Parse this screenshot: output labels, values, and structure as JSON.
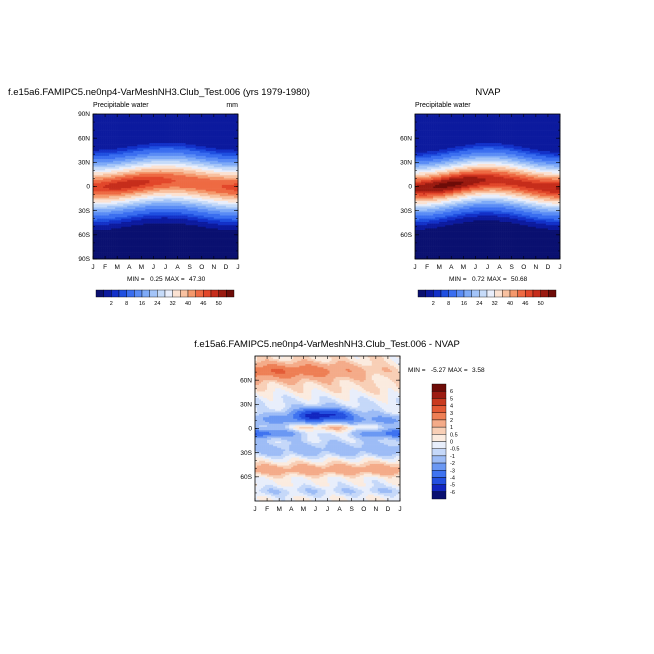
{
  "chart_data": [
    {
      "type": "heatmap",
      "title": "f.e15a6.FAMIPC5.ne0np4-VarMeshNH3.Club_Test.006 (yrs 1979-1980)",
      "left_label": "Precipitable water",
      "right_label": "mm",
      "x_tick_labels": [
        "J",
        "F",
        "M",
        "A",
        "M",
        "J",
        "J",
        "A",
        "S",
        "O",
        "N",
        "D",
        "J"
      ],
      "y_tick_labels": [
        "90N",
        "60N",
        "30N",
        "0",
        "30S",
        "60S",
        "90S"
      ],
      "y_ticks_deg": [
        90,
        60,
        30,
        0,
        -30,
        -60,
        -90
      ],
      "ylim": [
        -90,
        90
      ],
      "min_label": "MIN =",
      "min_value": "0.25",
      "max_label": "MAX =",
      "max_value": "47.30",
      "colorbar_labels": [
        "2",
        "8",
        "16",
        "24",
        "32",
        "40",
        "46",
        "50"
      ],
      "field": {
        "peak": 47.3,
        "peak_lat_at_jan": -2,
        "peak_lat_at_jul": 8,
        "decay_deg": 22,
        "south_floor": 0.25,
        "north_floor": 3
      }
    },
    {
      "type": "heatmap",
      "title": "NVAP",
      "left_label": "Precipitable water",
      "right_label": "",
      "x_tick_labels": [
        "J",
        "F",
        "M",
        "A",
        "M",
        "J",
        "J",
        "A",
        "S",
        "O",
        "N",
        "D",
        "J"
      ],
      "y_tick_labels": [
        "60N",
        "30N",
        "0",
        "30S",
        "60S"
      ],
      "y_ticks_deg": [
        60,
        30,
        0,
        -30,
        -60
      ],
      "ylim": [
        -90,
        90
      ],
      "min_label": "MIN =",
      "min_value": "0.72",
      "max_label": "MAX =",
      "max_value": "50.68",
      "colorbar_labels": [
        "2",
        "8",
        "16",
        "24",
        "32",
        "40",
        "46",
        "50"
      ],
      "field": {
        "peak": 50.68,
        "peak_lat_at_jan": -3,
        "peak_lat_at_jul": 9,
        "decay_deg": 21,
        "south_floor": 0.72,
        "north_floor": 3
      }
    },
    {
      "type": "heatmap",
      "title": "f.e15a6.FAMIPC5.ne0np4-VarMeshNH3.Club_Test.006 - NVAP",
      "left_label": "",
      "right_label": "",
      "x_tick_labels": [
        "J",
        "F",
        "M",
        "A",
        "M",
        "J",
        "J",
        "A",
        "S",
        "O",
        "N",
        "D",
        "J"
      ],
      "y_tick_labels": [
        "60N",
        "30N",
        "0",
        "30S",
        "60S"
      ],
      "y_ticks_deg": [
        60,
        30,
        0,
        -30,
        -60
      ],
      "ylim": [
        -90,
        90
      ],
      "min_label": "MIN =",
      "min_value": "-5.27",
      "max_label": "MAX =",
      "max_value": "3.58",
      "colorbar_labels": [
        "6",
        "5",
        "4",
        "3",
        "2",
        "1",
        "0.5",
        "0",
        "-0.5",
        "-1",
        "-2",
        "-3",
        "-4",
        "-5",
        "-6"
      ]
    }
  ],
  "colors": {
    "abs_palette": [
      "#0a1070",
      "#0c1a9e",
      "#1230c8",
      "#1f4fe0",
      "#3a6ef0",
      "#5a8cf5",
      "#7eaaf7",
      "#a3c4f8",
      "#c6dbf9",
      "#e9eefb",
      "#fbe2d2",
      "#f8c1a0",
      "#f4986c",
      "#ee6a43",
      "#e2472a",
      "#c62d1b",
      "#9a1a10",
      "#6e0c08"
    ],
    "diff_palette": [
      "#0a1070",
      "#1226c0",
      "#2450e0",
      "#3f73f0",
      "#6b98f3",
      "#9dbcf6",
      "#c5d8f9",
      "#e8eefb",
      "#fbebdf",
      "#f8cfb6",
      "#f4ab89",
      "#ee7f55",
      "#e35a35",
      "#c93a1f",
      "#9d1c12",
      "#6e0c08"
    ]
  }
}
